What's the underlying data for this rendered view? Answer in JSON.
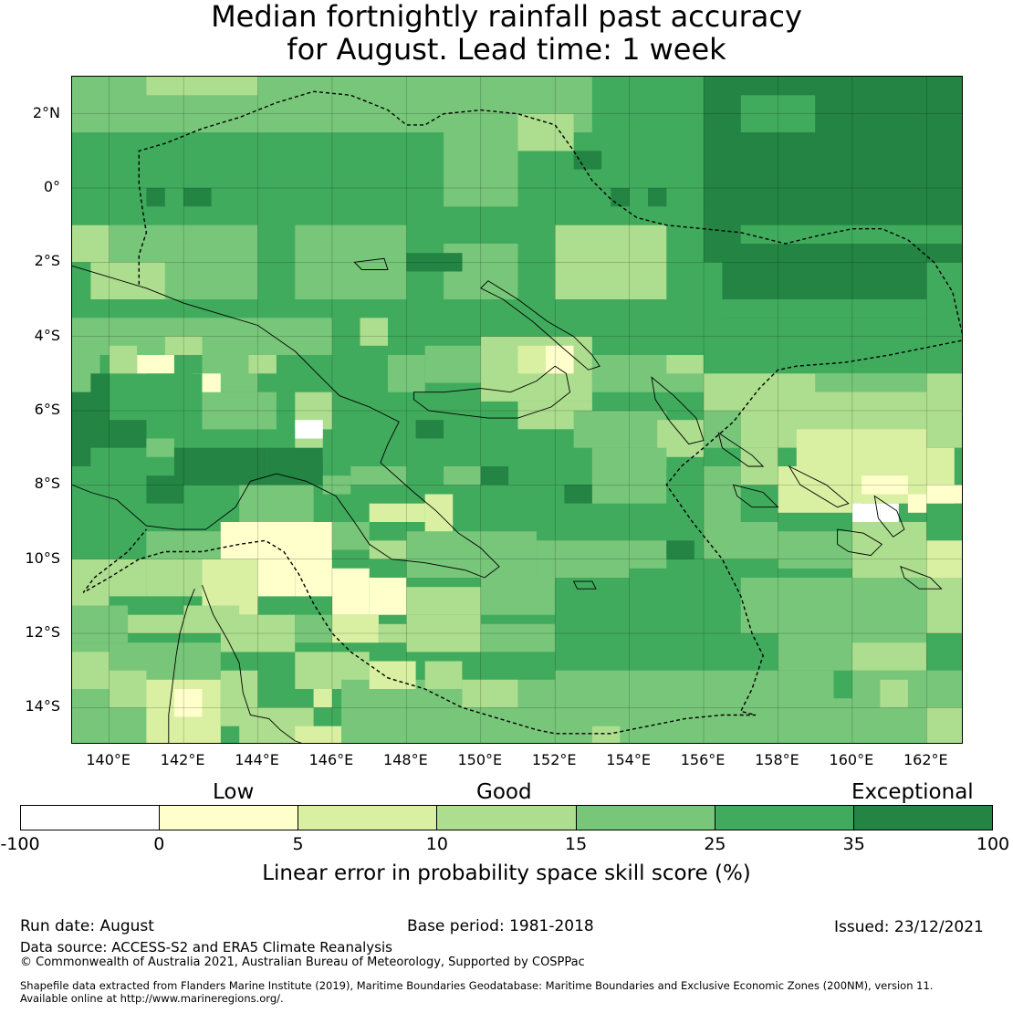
{
  "title": {
    "line1": "Median fortnightly rainfall past accuracy",
    "line2": "for August. Lead time: 1 week"
  },
  "map": {
    "lon_range": [
      139,
      163
    ],
    "lat_range": [
      -15,
      3
    ],
    "lat_ticks": [
      "2°N",
      "0°",
      "2°S",
      "4°S",
      "6°S",
      "8°S",
      "10°S",
      "12°S",
      "14°S"
    ],
    "lon_ticks": [
      "140°E",
      "142°E",
      "144°E",
      "146°E",
      "148°E",
      "150°E",
      "152°E",
      "154°E",
      "156°E",
      "158°E",
      "160°E",
      "162°E"
    ],
    "grid": true
  },
  "legend": {
    "categories": [
      "Low",
      "Good",
      "Exceptional"
    ],
    "ticks": [
      "-100",
      "0",
      "5",
      "10",
      "15",
      "25",
      "35",
      "100"
    ],
    "colors": [
      "#ffffff",
      "#ffffcc",
      "#d9f0a3",
      "#addd8e",
      "#78c679",
      "#41ab5d",
      "#238443"
    ],
    "axis_title": "Linear error in probability space skill score (%)"
  },
  "footer": {
    "run_date": "Run date: August",
    "base_period": "Base period: 1981-2018",
    "issued": "Issued: 23/12/2021",
    "data_source": "Data source: ACCESS-S2 and ERA5 Climate Reanalysis",
    "copyright": "© Commonwealth of Australia 2021, Australian Bureau of Meteorology, Supported by COSPPac",
    "shapefile_line1": "Shapefile data extracted from Flanders Marine Institute (2019), Maritime Boundaries Geodatabase: Maritime Boundaries and Exclusive Economic Zones (200NM), version 11.",
    "shapefile_line2": "Available online at http://www.marineregions.org/."
  }
}
